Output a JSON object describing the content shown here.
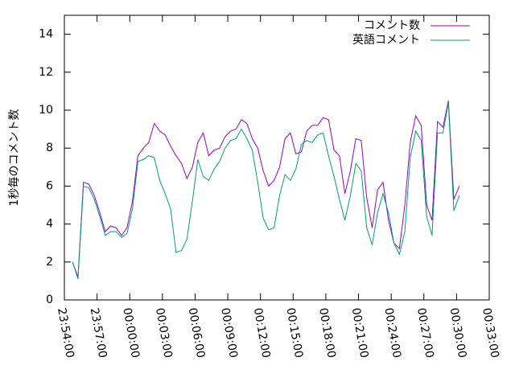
{
  "chart_data": {
    "type": "line",
    "ylabel": "1秒毎のコメント数",
    "x": [
      "23:54:45",
      "23:55:15",
      "23:55:45",
      "23:56:15",
      "23:56:45",
      "23:57:15",
      "23:57:45",
      "23:58:15",
      "23:58:45",
      "23:59:15",
      "23:59:45",
      "00:00:15",
      "00:00:45",
      "00:01:15",
      "00:01:45",
      "00:02:15",
      "00:02:45",
      "00:03:15",
      "00:03:45",
      "00:04:15",
      "00:04:45",
      "00:05:15",
      "00:05:45",
      "00:06:15",
      "00:06:45",
      "00:07:15",
      "00:07:45",
      "00:08:15",
      "00:08:45",
      "00:09:15",
      "00:09:45",
      "00:10:15",
      "00:10:45",
      "00:11:15",
      "00:11:45",
      "00:12:15",
      "00:12:45",
      "00:13:15",
      "00:13:45",
      "00:14:15",
      "00:14:45",
      "00:15:15",
      "00:15:45",
      "00:16:15",
      "00:16:45",
      "00:17:15",
      "00:17:45",
      "00:18:15",
      "00:18:45",
      "00:19:15",
      "00:19:45",
      "00:20:15",
      "00:20:45",
      "00:21:15",
      "00:21:45",
      "00:22:15",
      "00:22:45",
      "00:23:15",
      "00:23:45",
      "00:24:15",
      "00:24:45",
      "00:25:15",
      "00:25:45",
      "00:26:15",
      "00:26:45",
      "00:27:15",
      "00:27:45",
      "00:28:15",
      "00:28:45",
      "00:29:15",
      "00:29:45",
      "00:30:15"
    ],
    "series": [
      {
        "name": "コメント数",
        "color": "#9400d3",
        "values": [
          2.0,
          1.2,
          6.2,
          6.1,
          5.5,
          4.6,
          3.6,
          3.9,
          3.8,
          3.4,
          3.8,
          5.2,
          7.6,
          8.0,
          8.3,
          9.3,
          8.9,
          8.7,
          8.1,
          7.6,
          7.2,
          6.4,
          7.0,
          8.3,
          8.8,
          7.6,
          7.9,
          8.0,
          8.6,
          8.9,
          9.0,
          9.5,
          9.3,
          8.5,
          8.0,
          6.8,
          6.0,
          6.3,
          7.0,
          8.5,
          8.8,
          7.7,
          7.8,
          8.9,
          9.2,
          9.2,
          9.6,
          9.5,
          7.9,
          7.6,
          5.6,
          6.8,
          8.5,
          8.4,
          5.4,
          3.8,
          5.8,
          6.2,
          4.2,
          3.0,
          2.7,
          5.0,
          8.3,
          9.7,
          9.2,
          5.0,
          4.2,
          9.4,
          9.1,
          10.5,
          5.3,
          6.0
        ]
      },
      {
        "name": "英語コメント",
        "color": "#009e73",
        "values": [
          2.0,
          1.1,
          6.0,
          5.9,
          5.3,
          4.4,
          3.4,
          3.6,
          3.6,
          3.3,
          3.5,
          4.8,
          7.3,
          7.4,
          7.6,
          7.5,
          6.3,
          5.6,
          4.8,
          2.5,
          2.6,
          3.2,
          5.2,
          7.4,
          6.5,
          6.3,
          6.9,
          7.3,
          8.0,
          8.4,
          8.5,
          9.0,
          8.5,
          7.9,
          6.2,
          4.3,
          3.7,
          3.8,
          5.5,
          6.6,
          6.3,
          6.9,
          8.2,
          8.4,
          8.3,
          8.7,
          8.8,
          7.6,
          6.5,
          5.3,
          4.2,
          5.5,
          7.2,
          6.8,
          3.8,
          2.9,
          4.6,
          5.6,
          4.6,
          3.0,
          2.4,
          3.6,
          7.5,
          8.9,
          8.4,
          4.4,
          3.4,
          8.8,
          8.8,
          10.4,
          4.7,
          5.5
        ]
      }
    ],
    "xlim": [
      "23:54:00",
      "00:33:00"
    ],
    "xticks": [
      "23:54:00",
      "23:57:00",
      "00:00:00",
      "00:03:00",
      "00:06:00",
      "00:09:00",
      "00:12:00",
      "00:15:00",
      "00:18:00",
      "00:21:00",
      "00:24:00",
      "00:27:00",
      "00:30:00",
      "00:33:00"
    ],
    "ylim": [
      0,
      15
    ],
    "yticks": [
      0,
      2,
      4,
      6,
      8,
      10,
      12,
      14
    ],
    "legend": "top-right"
  }
}
